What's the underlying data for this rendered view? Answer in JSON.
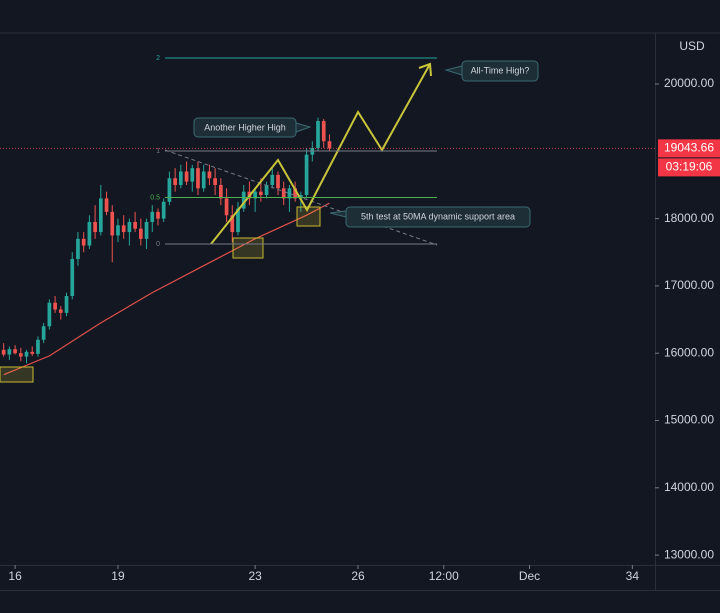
{
  "chart_data": {
    "type": "candlestick",
    "currency": "USD",
    "x": [
      15.667,
      15.833,
      16,
      16.167,
      16.333,
      16.5,
      16.667,
      16.833,
      17,
      17.167,
      17.333,
      17.5,
      17.667,
      17.833,
      18,
      18.167,
      18.333,
      18.5,
      18.667,
      18.833,
      19,
      19.167,
      19.333,
      19.5,
      19.667,
      19.833,
      20,
      20.167,
      20.333,
      20.5,
      20.667,
      20.833,
      21,
      21.167,
      21.333,
      21.5,
      21.667,
      21.833,
      22,
      22.167,
      22.333,
      22.5,
      22.667,
      22.833,
      23,
      23.167,
      23.333,
      23.5,
      23.667,
      23.833,
      24,
      24.167,
      24.333,
      24.5,
      24.667,
      24.833,
      25,
      25.167
    ],
    "open": [
      16050,
      15980,
      16060,
      16000,
      15950,
      16020,
      15990,
      16200,
      16400,
      16750,
      16650,
      16600,
      16850,
      17400,
      17700,
      17600,
      17950,
      17800,
      18300,
      18100,
      17750,
      17900,
      17800,
      17950,
      17850,
      17700,
      17950,
      18100,
      18000,
      18250,
      18600,
      18500,
      18700,
      18550,
      18750,
      18450,
      18700,
      18600,
      18500,
      18300,
      18050,
      17800,
      18150,
      18400,
      18300,
      18400,
      18350,
      18500,
      18650,
      18450,
      18300,
      18450,
      18300,
      18350,
      18950,
      19050,
      19450,
      19150
    ],
    "high": [
      16150,
      16100,
      16120,
      16080,
      16050,
      16100,
      16250,
      16450,
      16800,
      16850,
      16700,
      16900,
      17500,
      17800,
      17800,
      18050,
      18200,
      18500,
      18400,
      18200,
      18000,
      18050,
      18000,
      18100,
      18000,
      18000,
      18200,
      18150,
      18300,
      18700,
      18750,
      18800,
      18850,
      18800,
      18850,
      18800,
      18800,
      18750,
      18600,
      18450,
      18200,
      18250,
      18500,
      18550,
      18450,
      18600,
      18550,
      18750,
      18700,
      18550,
      18500,
      18550,
      18400,
      19050,
      19150,
      19500,
      19480,
      19250
    ],
    "low": [
      15950,
      15900,
      15980,
      15880,
      15850,
      15960,
      15950,
      16150,
      16350,
      16600,
      16500,
      16550,
      16800,
      17300,
      17500,
      17550,
      17700,
      17750,
      18050,
      17350,
      17650,
      17700,
      17600,
      17800,
      17600,
      17550,
      17800,
      17900,
      17950,
      18200,
      18400,
      18450,
      18500,
      18400,
      18350,
      18400,
      18500,
      18350,
      18200,
      17950,
      17650,
      17750,
      18100,
      18200,
      18100,
      18250,
      18300,
      18450,
      18350,
      18200,
      18100,
      18250,
      18100,
      18300,
      18850,
      19000,
      19050,
      19000
    ],
    "close": [
      15980,
      16060,
      16000,
      15950,
      16020,
      15990,
      16200,
      16400,
      16750,
      16650,
      16600,
      16850,
      17400,
      17700,
      17600,
      17950,
      17800,
      18300,
      18100,
      17750,
      17900,
      17800,
      17950,
      17850,
      17700,
      17950,
      18100,
      18000,
      18250,
      18600,
      18500,
      18700,
      18550,
      18750,
      18450,
      18700,
      18600,
      18500,
      18300,
      18050,
      17800,
      18150,
      18400,
      18300,
      18400,
      18350,
      18500,
      18650,
      18450,
      18300,
      18450,
      18300,
      18350,
      18950,
      19050,
      19450,
      19150,
      19043.66
    ],
    "up_color": "#26a69a",
    "down_color": "#ef5350",
    "ma": {
      "color": "#e0504a",
      "x": [
        15.667,
        17,
        18.5,
        20,
        21.5,
        23,
        24.5,
        25.167
      ],
      "values": [
        15680,
        15960,
        16450,
        16900,
        17300,
        17700,
        18050,
        18230
      ]
    },
    "last_price": 19043.66,
    "countdown": "03:19:06",
    "fib": {
      "levels": [
        2,
        1,
        0.5,
        0
      ],
      "prices": [
        20387,
        19005,
        18314,
        17623
      ],
      "colors": [
        "#26a69a",
        "#787b86",
        "#4caf50",
        "#787b86"
      ]
    },
    "annotations": [
      "Another Higher High",
      "All-Time High?",
      "5th test at 50MA dynamic support area"
    ],
    "xlim": [
      15.56,
      34.66
    ],
    "ylim": [
      12853,
      20758
    ],
    "xticks": [
      16,
      19,
      23,
      26,
      {
        "value": 28.5,
        "label": "12:00"
      },
      {
        "value": 31,
        "label": "Dec"
      },
      34
    ],
    "yticks": [
      {
        "value": 20000,
        "label": "20000.00"
      },
      {
        "value": 18000,
        "label": "18000.00"
      },
      {
        "value": 17000,
        "label": "17000.00"
      },
      {
        "value": 16000,
        "label": "16000.00"
      },
      {
        "value": 15000,
        "label": "15000.00"
      },
      {
        "value": 14000,
        "label": "14000.00"
      },
      {
        "value": 13000,
        "label": "13000.00"
      }
    ]
  }
}
